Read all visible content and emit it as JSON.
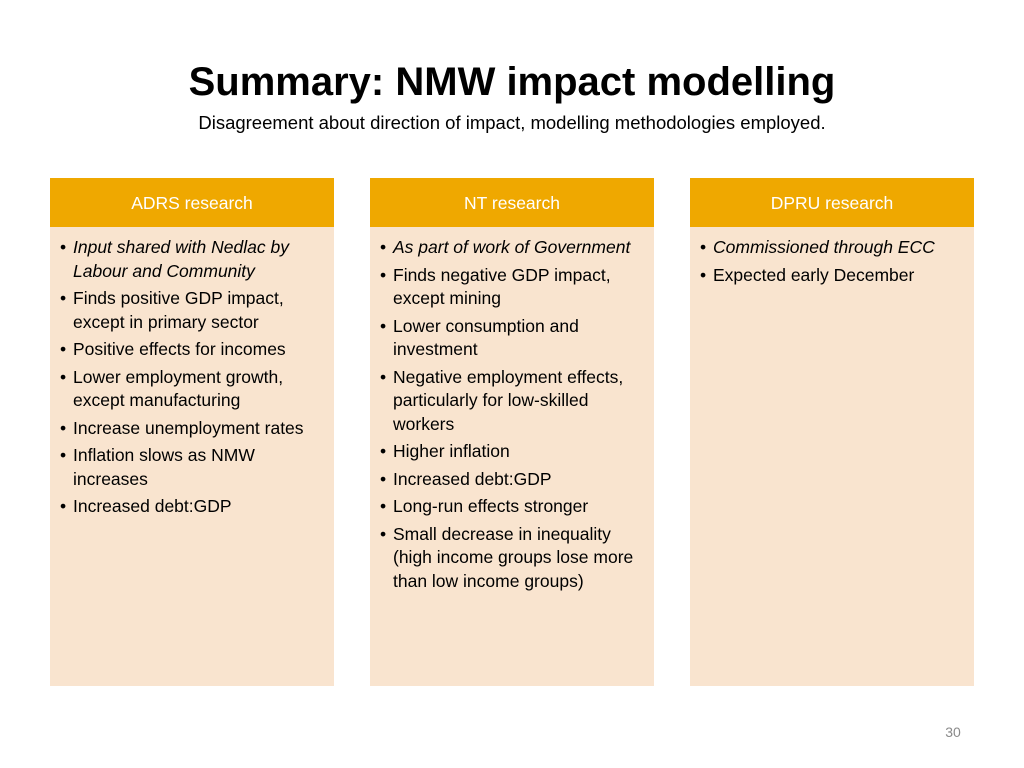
{
  "title": "Summary: NMW impact modelling",
  "subtitle": "Disagreement about direction of impact, modelling methodologies employed.",
  "columns": [
    {
      "header": "ADRS research",
      "items": [
        {
          "text": "Input shared with Nedlac by Labour and Community",
          "italic": true
        },
        {
          "text": "Finds positive GDP impact, except in primary sector",
          "italic": false
        },
        {
          "text": "Positive effects for incomes",
          "italic": false
        },
        {
          "text": "Lower employment  growth, except manufacturing",
          "italic": false
        },
        {
          "text": "Increase unemployment rates",
          "italic": false
        },
        {
          "text": "Inflation slows as NMW increases",
          "italic": false
        },
        {
          "text": "Increased debt:GDP",
          "italic": false
        }
      ]
    },
    {
      "header": "NT research",
      "items": [
        {
          "text": "As part of work of Government",
          "italic": true
        },
        {
          "text": "Finds negative GDP impact, except mining",
          "italic": false
        },
        {
          "text": "Lower consumption and investment",
          "italic": false
        },
        {
          "text": "Negative employment effects, particularly for low-skilled workers",
          "italic": false
        },
        {
          "text": "Higher inflation",
          "italic": false
        },
        {
          "text": "Increased debt:GDP",
          "italic": false
        },
        {
          "text": "Long-run effects stronger",
          "italic": false
        },
        {
          "text": "Small decrease in inequality (high income groups lose more than low income groups)",
          "italic": false
        }
      ]
    },
    {
      "header": "DPRU research",
      "items": [
        {
          "text": "Commissioned through ECC",
          "italic": true
        },
        {
          "text": "Expected early December",
          "italic": false
        }
      ]
    }
  ],
  "page_number": "30",
  "bullet_char": "•",
  "colors": {
    "header_fill": "#efa800",
    "body_fill": "#f9e4cf",
    "header_text": "#ffffff",
    "page_number": "#8a8a8a"
  }
}
